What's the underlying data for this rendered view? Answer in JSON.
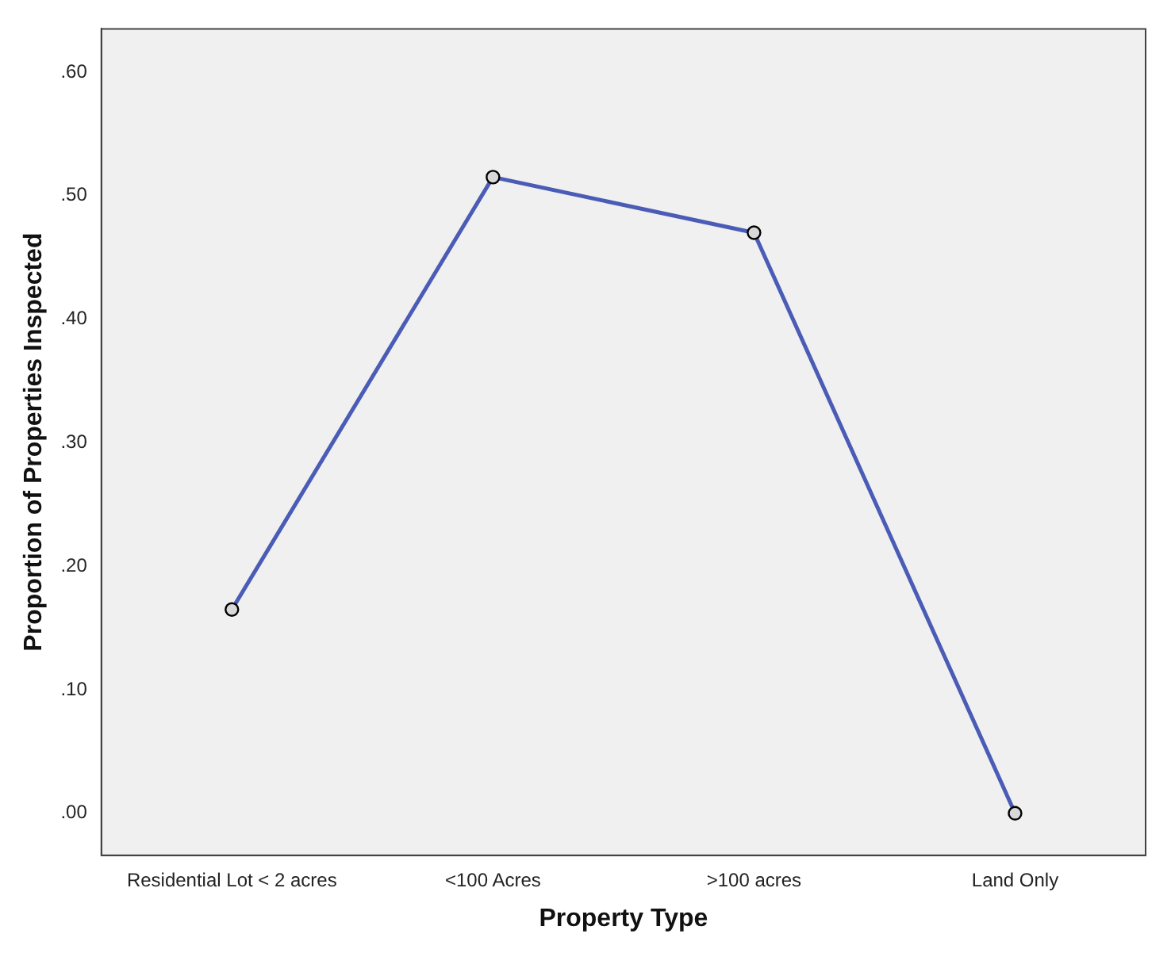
{
  "chart_data": {
    "type": "line",
    "xlabel": "Property Type",
    "ylabel": "Proportion of Properties Inspected",
    "categories": [
      "Residential Lot < 2 acres",
      "<100 Acres",
      ">100 acres",
      "Land Only"
    ],
    "series": [
      {
        "color": "#4a5cb5",
        "values": [
          0.165,
          0.515,
          0.47,
          0.0
        ]
      }
    ],
    "ylim": [
      -0.034,
      0.635
    ],
    "yticks": [
      {
        "value": 0,
        "label": ".00"
      },
      {
        "value": 0.1,
        "label": ".10"
      },
      {
        "value": 0.2,
        "label": ".20"
      },
      {
        "value": 0.3,
        "label": ".30"
      },
      {
        "value": 0.4,
        "label": ".40"
      },
      {
        "value": 0.5,
        "label": ".50"
      },
      {
        "value": 0.6,
        "label": ".60"
      }
    ],
    "grid": false,
    "legend": false,
    "marker": "circle",
    "line_style": "solid"
  }
}
